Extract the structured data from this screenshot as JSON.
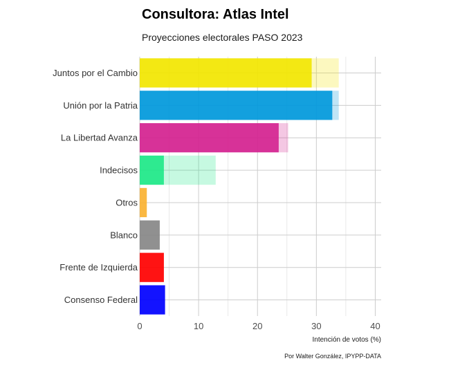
{
  "chart_data": {
    "type": "bar",
    "orientation": "horizontal",
    "title": "Consultora: Atlas Intel",
    "subtitle": "Proyecciones electorales PASO 2023",
    "xlabel": "Intención de votos (%)",
    "caption": "Por Walter González, IPYPP-DATA",
    "xlim": [
      0,
      41
    ],
    "xticks": [
      0,
      10,
      20,
      30,
      40
    ],
    "grid": true,
    "categories": [
      "Juntos por el Cambio",
      "Unión por la Patria",
      "La Libertad Avanza",
      "Indecisos",
      "Otros",
      "Blanco",
      "Frente de Izquierda",
      "Consenso Federal"
    ],
    "series": [
      {
        "values": [
          33.8,
          33.8,
          25.2,
          12.9,
          1.2,
          3.4,
          4.1,
          4.3
        ],
        "opacity": 0.25
      },
      {
        "values": [
          29.2,
          32.7,
          23.6,
          4.1,
          1.2,
          3.4,
          4.1,
          4.3
        ],
        "opacity": 0.9
      }
    ],
    "colors": [
      "#f2e500",
      "#0098db",
      "#d4218f",
      "#1de887",
      "#f9b233",
      "#878787",
      "#ff0000",
      "#0000ff"
    ]
  }
}
